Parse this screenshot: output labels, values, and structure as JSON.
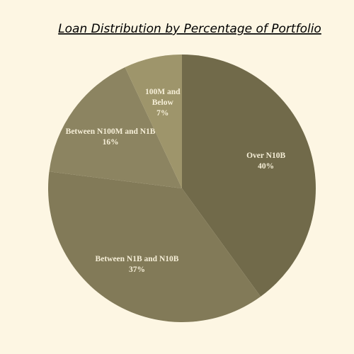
{
  "chart_data": {
    "type": "pie",
    "title": "Loan Distribution by Percentage of Portfolio",
    "categories": [
      "Over N10B",
      "Between N1B and N10B",
      "Between N100M and N1B",
      "100M and Below"
    ],
    "values": [
      40,
      37,
      16,
      7
    ],
    "value_labels": [
      "40%",
      "37%",
      "16%",
      "7%"
    ],
    "colors": [
      "#716a4a",
      "#827a58",
      "#8c8461",
      "#9e956b"
    ]
  }
}
